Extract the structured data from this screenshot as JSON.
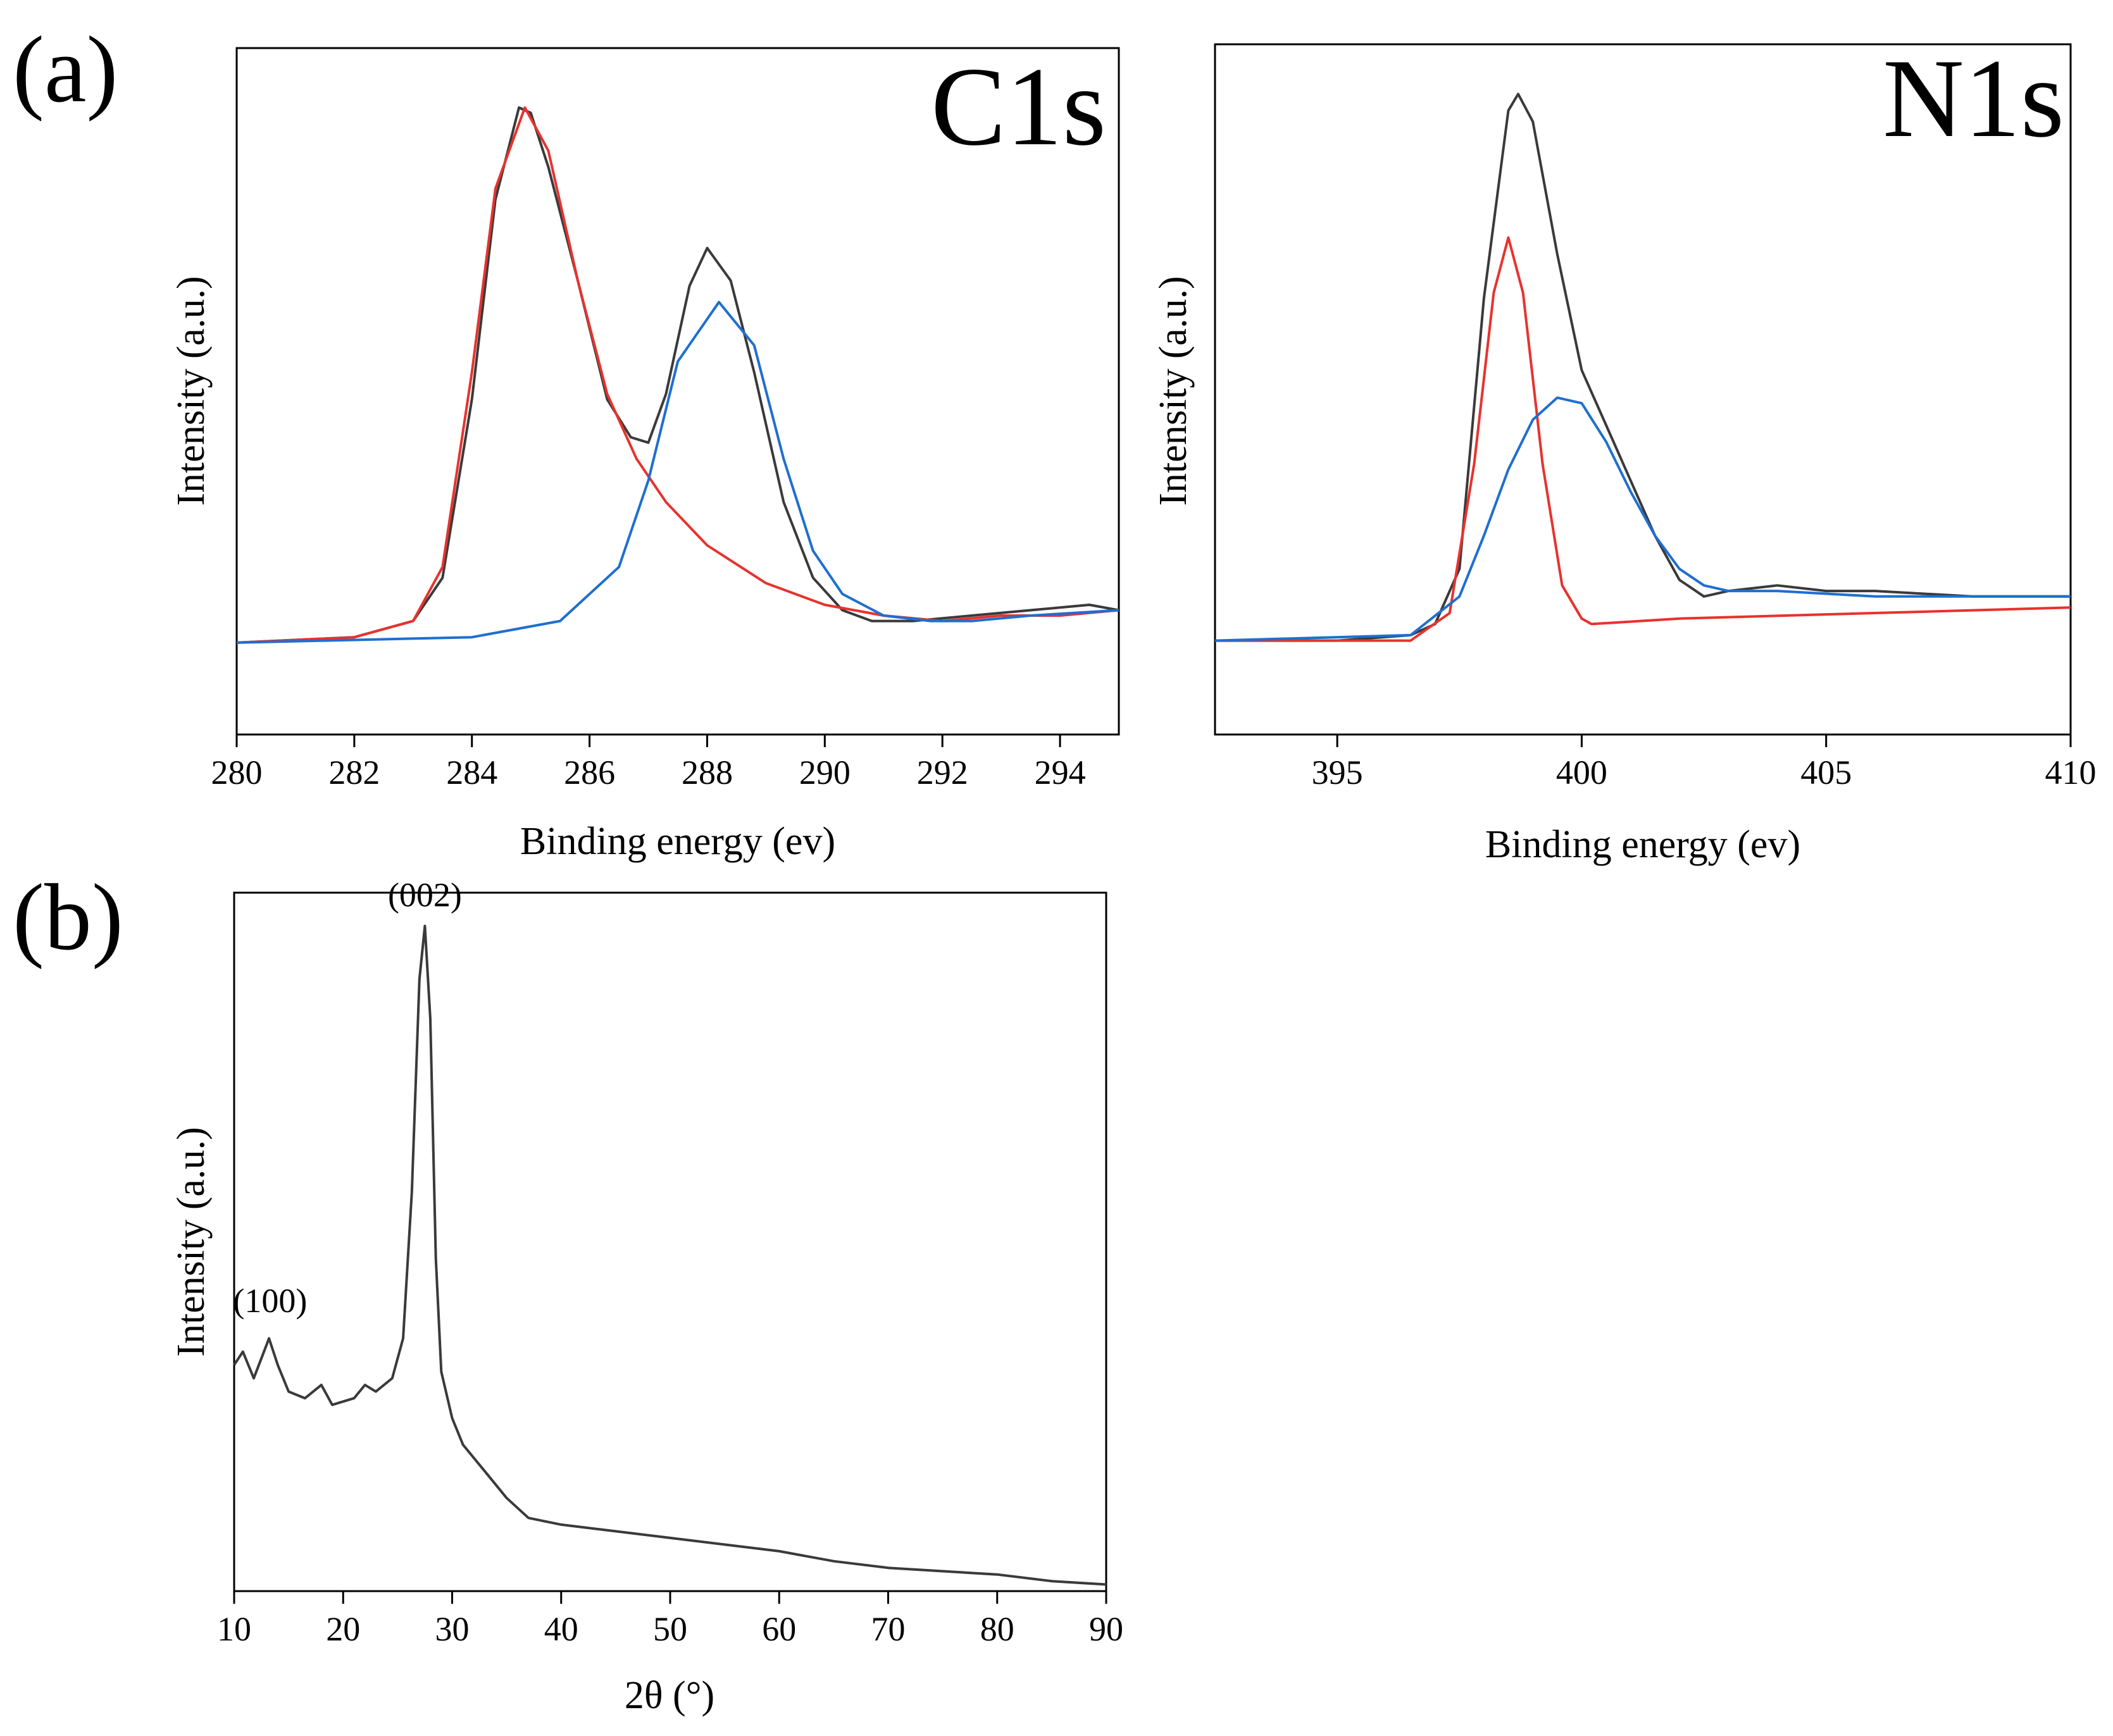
{
  "panel_labels": {
    "a": "(a)",
    "b": "(b)"
  },
  "colors": {
    "raw": "#3a3a3a",
    "fit_red": "#e8322d",
    "fit_blue": "#1e6fd0",
    "axis": "#000000"
  },
  "chart_data": [
    {
      "id": "c1s",
      "type": "line",
      "corner_label": "C1s",
      "xlabel": "Binding energy (ev)",
      "ylabel": "Intensity (a.u.)",
      "xlim": [
        280,
        295
      ],
      "ylim": [
        -0.17,
        1.1
      ],
      "xticks": [
        280,
        282,
        284,
        286,
        288,
        290,
        292,
        294
      ],
      "series": [
        {
          "style": "raw",
          "x": [
            280.0,
            282.0,
            283.0,
            283.5,
            284.0,
            284.4,
            284.8,
            285.0,
            285.3,
            285.8,
            286.3,
            286.7,
            287.0,
            287.3,
            287.7,
            288.0,
            288.4,
            288.8,
            289.3,
            289.8,
            290.3,
            290.8,
            291.5,
            292.5,
            293.5,
            294.5,
            295.0
          ],
          "y": [
            0.0,
            0.01,
            0.04,
            0.12,
            0.45,
            0.82,
            0.99,
            0.98,
            0.88,
            0.67,
            0.45,
            0.38,
            0.37,
            0.46,
            0.66,
            0.73,
            0.67,
            0.5,
            0.26,
            0.12,
            0.06,
            0.04,
            0.04,
            0.05,
            0.06,
            0.07,
            0.06
          ]
        },
        {
          "style": "fit_red",
          "x": [
            280.0,
            282.0,
            283.0,
            283.5,
            284.0,
            284.4,
            284.9,
            285.3,
            285.8,
            286.3,
            286.8,
            287.3,
            288.0,
            289.0,
            290.0,
            291.0,
            292.0,
            293.0,
            294.0,
            295.0
          ],
          "y": [
            0.0,
            0.01,
            0.04,
            0.14,
            0.5,
            0.84,
            0.99,
            0.91,
            0.67,
            0.46,
            0.34,
            0.26,
            0.18,
            0.11,
            0.07,
            0.05,
            0.04,
            0.05,
            0.05,
            0.06
          ]
        },
        {
          "style": "fit_blue",
          "x": [
            280.0,
            284.0,
            285.5,
            286.5,
            287.0,
            287.5,
            288.2,
            288.8,
            289.3,
            289.8,
            290.3,
            291.0,
            291.8,
            292.5,
            293.5,
            295.0
          ],
          "y": [
            0.0,
            0.01,
            0.04,
            0.14,
            0.3,
            0.52,
            0.63,
            0.55,
            0.34,
            0.17,
            0.09,
            0.05,
            0.04,
            0.04,
            0.05,
            0.06
          ]
        }
      ]
    },
    {
      "id": "n1s",
      "type": "line",
      "corner_label": "N1s",
      "xlabel": "Binding energy (ev)",
      "ylabel": "Intensity (a.u.)",
      "xlim": [
        392.5,
        410
      ],
      "ylim": [
        -0.17,
        1.08
      ],
      "xticks": [
        395,
        400,
        405,
        410
      ],
      "series": [
        {
          "style": "raw",
          "x": [
            392.5,
            395.0,
            396.5,
            397.0,
            397.5,
            398.0,
            398.5,
            398.7,
            399.0,
            399.5,
            400.0,
            400.5,
            401.0,
            401.5,
            402.0,
            402.5,
            403.0,
            404.0,
            405.0,
            406.0,
            408.0,
            410.0
          ],
          "y": [
            0.0,
            0.0,
            0.01,
            0.03,
            0.13,
            0.62,
            0.96,
            0.99,
            0.94,
            0.7,
            0.49,
            0.39,
            0.29,
            0.19,
            0.11,
            0.08,
            0.09,
            0.1,
            0.09,
            0.09,
            0.08,
            0.08
          ]
        },
        {
          "style": "fit_red",
          "x": [
            392.5,
            396.5,
            397.3,
            397.8,
            398.2,
            398.5,
            398.8,
            399.2,
            399.6,
            400.0,
            400.2,
            402.0,
            410.0
          ],
          "y": [
            0.0,
            0.0,
            0.05,
            0.32,
            0.63,
            0.73,
            0.63,
            0.32,
            0.1,
            0.04,
            0.03,
            0.04,
            0.06
          ]
        },
        {
          "style": "fit_blue",
          "x": [
            392.5,
            396.5,
            397.5,
            398.0,
            398.5,
            399.0,
            399.5,
            400.0,
            400.5,
            401.0,
            401.5,
            402.0,
            402.5,
            403.0,
            404.0,
            406.0,
            410.0
          ],
          "y": [
            0.0,
            0.01,
            0.08,
            0.19,
            0.31,
            0.4,
            0.44,
            0.43,
            0.36,
            0.27,
            0.19,
            0.13,
            0.1,
            0.09,
            0.09,
            0.08,
            0.08
          ]
        }
      ]
    },
    {
      "id": "xrd",
      "type": "line",
      "xlabel": "2θ (°)",
      "ylabel": "Intensity (a.u.)",
      "xlim": [
        10,
        90
      ],
      "ylim": [
        0,
        1.05
      ],
      "xticks": [
        10,
        20,
        30,
        40,
        50,
        60,
        70,
        80,
        90
      ],
      "annotations": [
        {
          "text": "(002)",
          "x": 27.5,
          "y": 1.02
        },
        {
          "text": "(100)",
          "x": 13.3,
          "y": 0.41
        }
      ],
      "series": [
        {
          "style": "raw",
          "x": [
            10.0,
            10.8,
            11.8,
            12.5,
            13.2,
            14.0,
            15.0,
            16.5,
            18.0,
            19.0,
            21.0,
            22.0,
            23.0,
            24.5,
            25.5,
            26.3,
            27.0,
            27.5,
            28.0,
            28.5,
            29.0,
            30.0,
            31.0,
            33.0,
            35.0,
            37.0,
            40.0,
            45.0,
            50.0,
            55.0,
            60.0,
            65.0,
            70.0,
            75.0,
            80.0,
            85.0,
            90.0
          ],
          "y": [
            0.34,
            0.36,
            0.32,
            0.35,
            0.38,
            0.34,
            0.3,
            0.29,
            0.31,
            0.28,
            0.29,
            0.31,
            0.3,
            0.32,
            0.38,
            0.6,
            0.92,
            1.0,
            0.86,
            0.5,
            0.33,
            0.26,
            0.22,
            0.18,
            0.14,
            0.11,
            0.1,
            0.09,
            0.08,
            0.07,
            0.06,
            0.045,
            0.035,
            0.03,
            0.025,
            0.015,
            0.01
          ]
        }
      ]
    }
  ]
}
